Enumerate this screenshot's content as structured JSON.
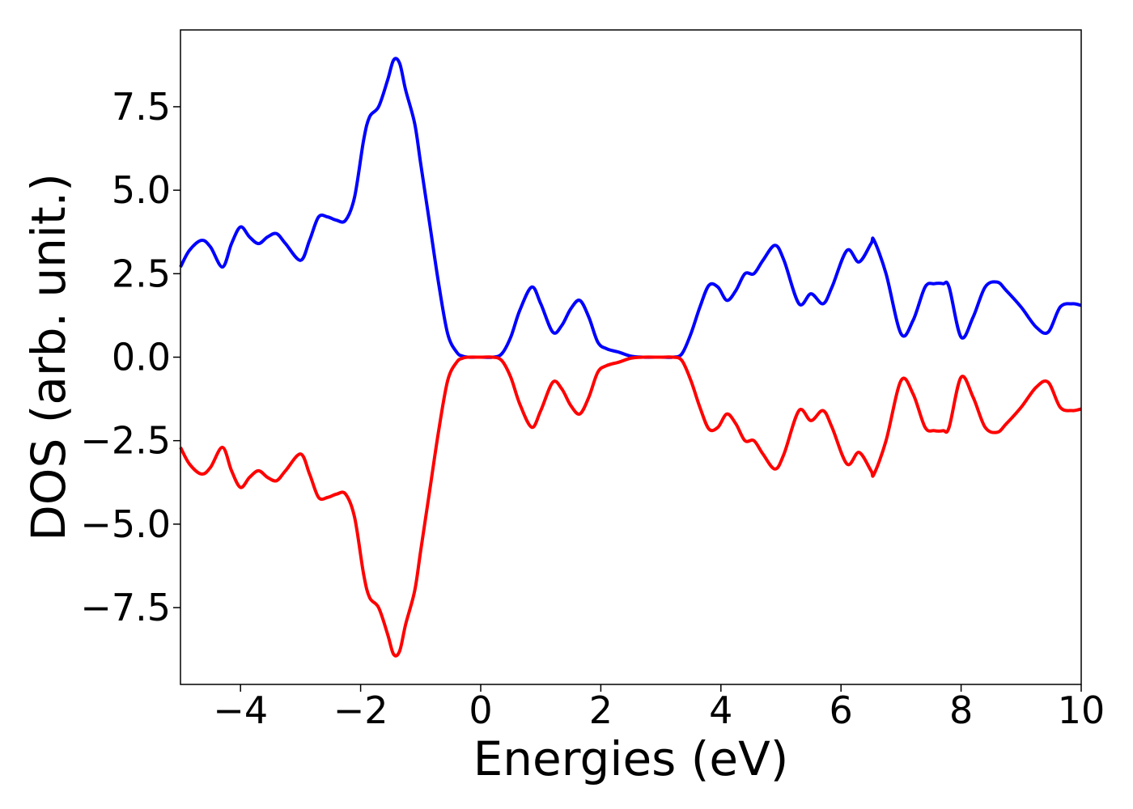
{
  "chart_data": {
    "type": "line",
    "xlabel": "Energies (eV)",
    "ylabel": "DOS (arb. unit.)",
    "xlim": [
      -5,
      10
    ],
    "ylim": [
      -9.8,
      9.8
    ],
    "x_ticks": [
      -4,
      -2,
      0,
      2,
      4,
      6,
      8,
      10
    ],
    "x_tick_labels": [
      "−4",
      "−2",
      "0",
      "2",
      "4",
      "6",
      "8",
      "10"
    ],
    "y_ticks": [
      7.5,
      5.0,
      2.5,
      0.0,
      -2.5,
      -5.0,
      -7.5
    ],
    "y_tick_labels": [
      "7.5",
      "5.0",
      "2.5",
      "0.0",
      "−2.5",
      "−5.0",
      "−7.5"
    ],
    "grid": false,
    "series": [
      {
        "color": "#0000ff",
        "x": [
          -5.0,
          -4.85,
          -4.65,
          -4.5,
          -4.3,
          -4.15,
          -4.0,
          -3.85,
          -3.7,
          -3.55,
          -3.4,
          -3.25,
          -3.0,
          -2.85,
          -2.7,
          -2.55,
          -2.4,
          -2.25,
          -2.1,
          -1.95,
          -1.85,
          -1.7,
          -1.55,
          -1.45,
          -1.35,
          -1.25,
          -1.1,
          -1.0,
          -0.85,
          -0.7,
          -0.55,
          -0.4,
          -0.3,
          -0.2,
          0.0,
          0.2,
          0.35,
          0.5,
          0.65,
          0.85,
          1.0,
          1.2,
          1.35,
          1.5,
          1.65,
          1.8,
          1.95,
          2.1,
          2.3,
          2.5,
          2.7,
          3.0,
          3.2,
          3.35,
          3.5,
          3.65,
          3.8,
          3.95,
          4.1,
          4.25,
          4.4,
          4.55,
          4.7,
          4.9,
          5.05,
          5.3,
          5.5,
          5.7,
          5.85,
          6.1,
          6.3,
          6.5,
          6.55,
          6.75,
          7.0,
          7.2,
          7.4,
          7.55,
          7.7,
          7.8,
          8.0,
          8.2,
          8.4,
          8.6,
          8.75,
          9.0,
          9.25,
          9.45,
          9.65,
          9.85,
          10.0
        ],
        "y": [
          2.7,
          3.2,
          3.5,
          3.3,
          2.7,
          3.4,
          3.9,
          3.6,
          3.4,
          3.6,
          3.7,
          3.4,
          2.9,
          3.5,
          4.2,
          4.2,
          4.1,
          4.1,
          4.8,
          6.5,
          7.2,
          7.5,
          8.3,
          8.9,
          8.8,
          8.0,
          7.0,
          5.8,
          4.0,
          2.2,
          0.7,
          0.15,
          0.03,
          0.0,
          0.0,
          0.0,
          0.1,
          0.6,
          1.4,
          2.1,
          1.6,
          0.75,
          0.95,
          1.45,
          1.7,
          1.2,
          0.45,
          0.25,
          0.15,
          0.03,
          0.0,
          0.0,
          0.0,
          0.1,
          0.7,
          1.5,
          2.15,
          2.1,
          1.7,
          2.0,
          2.5,
          2.5,
          2.9,
          3.35,
          2.9,
          1.6,
          1.9,
          1.6,
          2.1,
          3.2,
          2.85,
          3.4,
          3.5,
          2.5,
          0.7,
          1.1,
          2.1,
          2.2,
          2.2,
          2.1,
          0.6,
          1.2,
          2.1,
          2.25,
          2.0,
          1.5,
          0.9,
          0.75,
          1.5,
          1.6,
          1.55
        ]
      },
      {
        "color": "#ff0000",
        "x": [
          -5.0,
          -4.85,
          -4.65,
          -4.5,
          -4.3,
          -4.15,
          -4.0,
          -3.85,
          -3.7,
          -3.55,
          -3.4,
          -3.25,
          -3.0,
          -2.85,
          -2.7,
          -2.55,
          -2.4,
          -2.25,
          -2.1,
          -1.95,
          -1.85,
          -1.7,
          -1.55,
          -1.45,
          -1.35,
          -1.25,
          -1.1,
          -1.0,
          -0.85,
          -0.7,
          -0.55,
          -0.4,
          -0.3,
          -0.2,
          0.0,
          0.2,
          0.35,
          0.5,
          0.65,
          0.85,
          1.0,
          1.2,
          1.35,
          1.5,
          1.65,
          1.8,
          1.95,
          2.1,
          2.3,
          2.5,
          2.7,
          3.0,
          3.2,
          3.35,
          3.5,
          3.65,
          3.8,
          3.95,
          4.1,
          4.25,
          4.4,
          4.55,
          4.7,
          4.9,
          5.05,
          5.3,
          5.5,
          5.7,
          5.85,
          6.1,
          6.3,
          6.5,
          6.55,
          6.75,
          7.0,
          7.2,
          7.4,
          7.55,
          7.7,
          7.8,
          8.0,
          8.2,
          8.4,
          8.6,
          8.75,
          9.0,
          9.25,
          9.45,
          9.65,
          9.85,
          10.0
        ],
        "y": [
          -2.7,
          -3.2,
          -3.5,
          -3.3,
          -2.7,
          -3.4,
          -3.9,
          -3.6,
          -3.4,
          -3.6,
          -3.7,
          -3.4,
          -2.9,
          -3.5,
          -4.2,
          -4.2,
          -4.1,
          -4.1,
          -4.8,
          -6.5,
          -7.2,
          -7.5,
          -8.3,
          -8.9,
          -8.8,
          -8.0,
          -7.0,
          -5.8,
          -4.0,
          -2.2,
          -0.7,
          -0.15,
          -0.03,
          0.0,
          0.0,
          0.0,
          -0.1,
          -0.6,
          -1.4,
          -2.1,
          -1.6,
          -0.75,
          -0.95,
          -1.45,
          -1.7,
          -1.2,
          -0.45,
          -0.25,
          -0.15,
          -0.03,
          0.0,
          0.0,
          0.0,
          -0.1,
          -0.7,
          -1.5,
          -2.15,
          -2.1,
          -1.7,
          -2.0,
          -2.5,
          -2.5,
          -2.9,
          -3.35,
          -2.9,
          -1.6,
          -1.9,
          -1.6,
          -2.1,
          -3.2,
          -2.85,
          -3.4,
          -3.5,
          -2.5,
          -0.7,
          -1.1,
          -2.1,
          -2.2,
          -2.2,
          -2.1,
          -0.6,
          -1.2,
          -2.1,
          -2.25,
          -2.0,
          -1.5,
          -0.9,
          -0.75,
          -1.5,
          -1.6,
          -1.55
        ]
      }
    ]
  }
}
